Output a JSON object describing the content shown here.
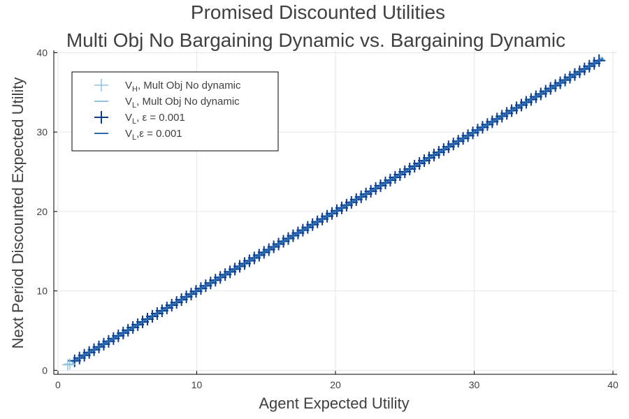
{
  "chart_data": {
    "type": "scatter",
    "title_lines": [
      "Promised Discounted Utilities",
      "Multi Obj No Bargaining Dynamic vs. Bargaining Dynamic"
    ],
    "xlabel": "Agent Expected Utility",
    "ylabel": "Next Period Discounted Expected Utility",
    "xlim": [
      -0.3,
      40.3
    ],
    "ylim": [
      -0.5,
      40.3
    ],
    "x_ticks": [
      0,
      10,
      20,
      30,
      40
    ],
    "y_ticks": [
      0,
      10,
      20,
      30,
      40
    ],
    "x_tick_labels": [
      "0",
      "10",
      "20",
      "30",
      "40"
    ],
    "y_tick_labels": [
      "0",
      "10",
      "20",
      "30",
      "40"
    ],
    "grid": true,
    "legend_position": "top-left",
    "series": [
      {
        "name": "V_H, Mult Obj No dynamic",
        "label_main": "V",
        "label_sub": "H",
        "label_rest": ", Mult Obj No dynamic",
        "kind": "markers",
        "marker": "cross",
        "color": "#8fc3e0",
        "points": [
          [
            0.7,
            0.7
          ],
          [
            0.85,
            0.8
          ]
        ]
      },
      {
        "name": "V_L, Mult Obj No dynamic",
        "label_main": "V",
        "label_sub": "L",
        "label_rest": ", Mult Obj No dynamic",
        "kind": "line",
        "color": "#8fc3e0",
        "points": [
          [
            1.0,
            1.0
          ],
          [
            39.3,
            39.3
          ]
        ]
      },
      {
        "name": "V_L, ε = 0.001",
        "label_main": "V",
        "label_sub": "L",
        "label_rest": ", ε = 0.001",
        "kind": "markers",
        "marker": "cross",
        "color": "#0b3d91",
        "range": [
          1.2,
          39.3
        ],
        "step": 0.35
      },
      {
        "name": "V_L,ε = 0.001",
        "label_main": "V",
        "label_sub": "L",
        "label_rest": ",ε = 0.001",
        "kind": "line",
        "color": "#2b6cb0",
        "points": [
          [
            1.2,
            1.2
          ],
          [
            39.3,
            39.3
          ]
        ]
      }
    ]
  }
}
